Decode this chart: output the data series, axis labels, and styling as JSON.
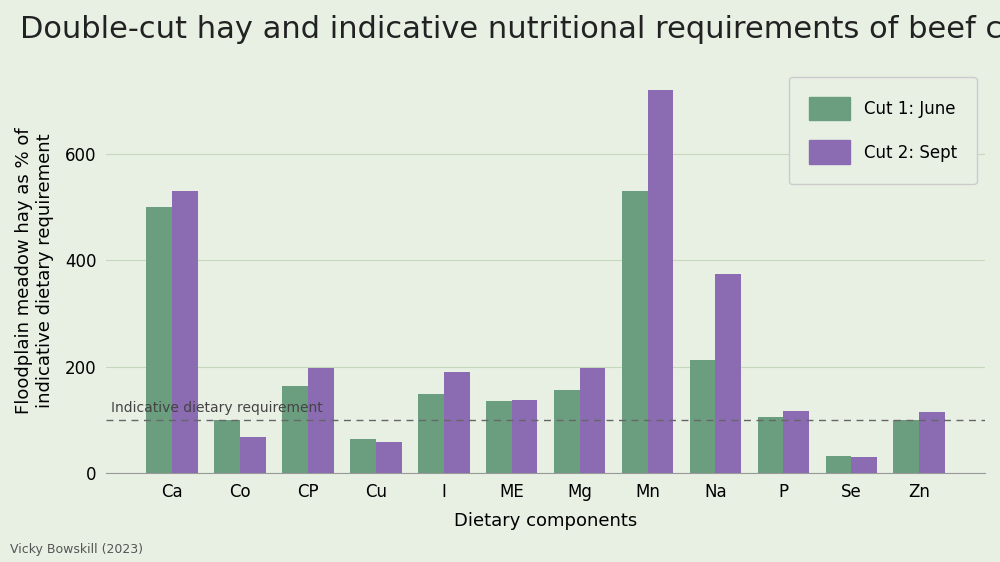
{
  "title": "Double-cut hay and indicative nutritional requirements of beef cattle",
  "xlabel": "Dietary components",
  "ylabel": "Floodplain meadow hay as % of\nindicative dietary requirement",
  "categories": [
    "Ca",
    "Co",
    "CP",
    "Cu",
    "I",
    "ME",
    "Mg",
    "Mn",
    "Na",
    "P",
    "Se",
    "Zn"
  ],
  "cut1_values": [
    500,
    100,
    163,
    65,
    148,
    135,
    157,
    530,
    212,
    105,
    33,
    100
  ],
  "cut2_values": [
    530,
    68,
    197,
    58,
    190,
    137,
    197,
    720,
    375,
    117,
    30,
    115
  ],
  "cut1_color": "#6a9e7f",
  "cut2_color": "#8b6bb1",
  "background_color": "#e8f0e4",
  "plot_background_color": "#e8f0e4",
  "dashed_line_y": 100,
  "dashed_line_label": "Indicative dietary requirement",
  "legend_labels": [
    "Cut 1: June",
    "Cut 2: Sept"
  ],
  "ylim": [
    0,
    760
  ],
  "yticks": [
    0,
    200,
    400,
    600
  ],
  "grid_color": "#c5d8bc",
  "footnote": "Vicky Bowskill (2023)",
  "title_fontsize": 22,
  "label_fontsize": 13,
  "tick_fontsize": 12,
  "legend_fontsize": 12,
  "footnote_fontsize": 9,
  "bar_width": 0.38
}
